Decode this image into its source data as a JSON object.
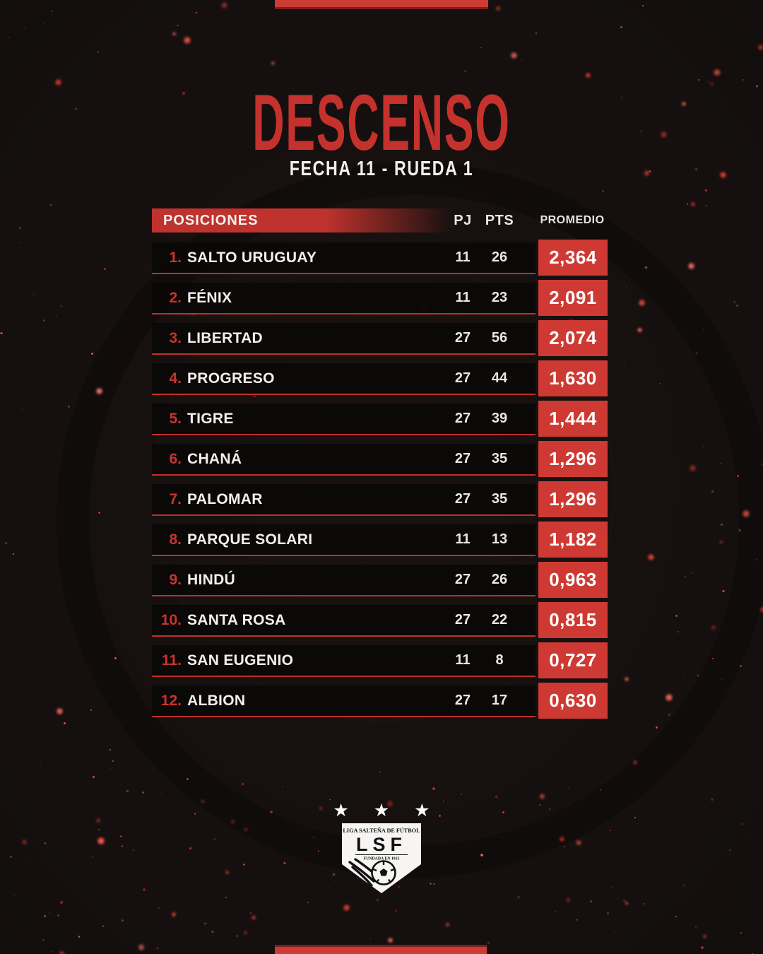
{
  "title": "DESCENSO",
  "subtitle": "FECHA 11 - RUEDA 1",
  "colors": {
    "accent_red": "#ce3a33",
    "title_red": "#c5322d",
    "header_bar_red": "#bf322d",
    "separator_red": "#bf2f2a",
    "background": "#15100f",
    "row_background": "#0b0808",
    "text_white": "#f3efec"
  },
  "table": {
    "header": {
      "positions": "POSICIONES",
      "pj": "PJ",
      "pts": "PTS",
      "promedio": "PROMEDIO"
    },
    "rows": [
      {
        "rank": "1.",
        "team": "SALTO URUGUAY",
        "pj": "11",
        "pts": "26",
        "promedio": "2,364"
      },
      {
        "rank": "2.",
        "team": "FÉNIX",
        "pj": "11",
        "pts": "23",
        "promedio": "2,091"
      },
      {
        "rank": "3.",
        "team": "LIBERTAD",
        "pj": "27",
        "pts": "56",
        "promedio": "2,074"
      },
      {
        "rank": "4.",
        "team": "PROGRESO",
        "pj": "27",
        "pts": "44",
        "promedio": "1,630"
      },
      {
        "rank": "5.",
        "team": "TIGRE",
        "pj": "27",
        "pts": "39",
        "promedio": "1,444"
      },
      {
        "rank": "6.",
        "team": "CHANÁ",
        "pj": "27",
        "pts": "35",
        "promedio": "1,296"
      },
      {
        "rank": "7.",
        "team": "PALOMAR",
        "pj": "27",
        "pts": "35",
        "promedio": "1,296"
      },
      {
        "rank": "8.",
        "team": "PARQUE SOLARI",
        "pj": "11",
        "pts": "13",
        "promedio": "1,182"
      },
      {
        "rank": "9.",
        "team": "HINDÚ",
        "pj": "27",
        "pts": "26",
        "promedio": "0,963"
      },
      {
        "rank": "10.",
        "team": "SANTA ROSA",
        "pj": "27",
        "pts": "22",
        "promedio": "0,815"
      },
      {
        "rank": "11.",
        "team": "SAN EUGENIO",
        "pj": "11",
        "pts": "8",
        "promedio": "0,727"
      },
      {
        "rank": "12.",
        "team": "ALBION",
        "pj": "27",
        "pts": "17",
        "promedio": "0,630"
      }
    ]
  },
  "logo": {
    "stars": "★ ★ ★",
    "league_name": "LIGA SALTEÑA DE FÚTBOL",
    "initials": "LSF",
    "founded": "FUNDADA EN 1915"
  },
  "chart_data": {
    "type": "table",
    "title": "DESCENSO",
    "subtitle": "FECHA 11 - RUEDA 1",
    "columns": [
      "POSICIONES",
      "PJ",
      "PTS",
      "PROMEDIO"
    ],
    "rows": [
      [
        "SALTO URUGUAY",
        11,
        26,
        "2,364"
      ],
      [
        "FÉNIX",
        11,
        23,
        "2,091"
      ],
      [
        "LIBERTAD",
        27,
        56,
        "2,074"
      ],
      [
        "PROGRESO",
        27,
        44,
        "1,630"
      ],
      [
        "TIGRE",
        27,
        39,
        "1,444"
      ],
      [
        "CHANÁ",
        27,
        35,
        "1,296"
      ],
      [
        "PALOMAR",
        27,
        35,
        "1,296"
      ],
      [
        "PARQUE SOLARI",
        11,
        13,
        "1,182"
      ],
      [
        "HINDÚ",
        27,
        26,
        "0,963"
      ],
      [
        "SANTA ROSA",
        27,
        22,
        "0,815"
      ],
      [
        "SAN EUGENIO",
        11,
        8,
        "0,727"
      ],
      [
        "ALBION",
        27,
        17,
        "0,630"
      ]
    ]
  }
}
